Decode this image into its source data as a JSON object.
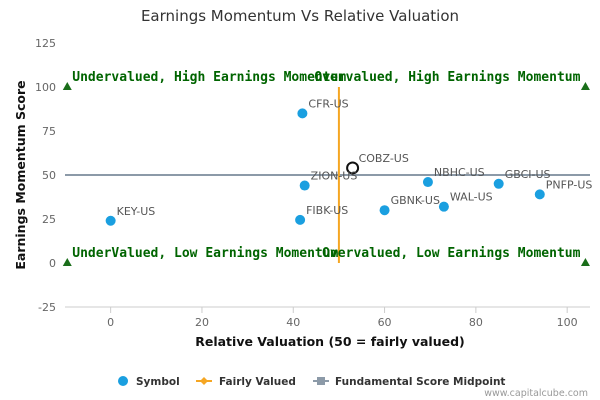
{
  "chart_data": {
    "type": "scatter",
    "title": "Earnings Momentum Vs Relative Valuation",
    "xlabel": "Relative Valuation (50 = fairly valued)",
    "ylabel": "Earnings Momentum Score",
    "xlim": [
      -10,
      105
    ],
    "ylim": [
      -25,
      125
    ],
    "xticks": [
      0,
      20,
      40,
      60,
      80,
      100
    ],
    "yticks": [
      -25,
      0,
      25,
      50,
      75,
      100,
      125
    ],
    "fair_value_x": 50,
    "midpoint_y": 50,
    "points": [
      {
        "label": "CFR-US",
        "x": 42,
        "y": 85
      },
      {
        "label": "COBZ-US",
        "x": 53,
        "y": 54,
        "highlight": true
      },
      {
        "label": "ZION-US",
        "x": 42.5,
        "y": 44
      },
      {
        "label": "NBHC-US",
        "x": 69.5,
        "y": 46
      },
      {
        "label": "GBCI-US",
        "x": 85,
        "y": 45
      },
      {
        "label": "PNFP-US",
        "x": 94,
        "y": 39
      },
      {
        "label": "GBNK-US",
        "x": 60,
        "y": 30
      },
      {
        "label": "WAL-US",
        "x": 73,
        "y": 32
      },
      {
        "label": "FIBK-US",
        "x": 41.5,
        "y": 24.5
      },
      {
        "label": "KEY-US",
        "x": 0,
        "y": 24
      }
    ],
    "quadrant_labels": {
      "top_left": "Undervalued, High Earnings Momentum",
      "top_right": "Overvalued, High Earnings Momentum",
      "bottom_left": "UnderValued, Low Earnings Momentum",
      "bottom_right": "Overvalued, Low Earnings Momentum"
    },
    "legend": [
      {
        "name": "Symbol",
        "color": "#1a9fe0"
      },
      {
        "name": "Fairly Valued",
        "color": "#f5a623"
      },
      {
        "name": "Fundamental Score Midpoint",
        "color": "#8c9aa8"
      }
    ],
    "credit": "www.capitalcube.com",
    "colors": {
      "point": "#1a9fe0",
      "fair_line": "#f5a623",
      "midpoint_line": "#8c9aa8",
      "quadrant_text": "#006400",
      "triangle": "#1a6e1a"
    }
  }
}
